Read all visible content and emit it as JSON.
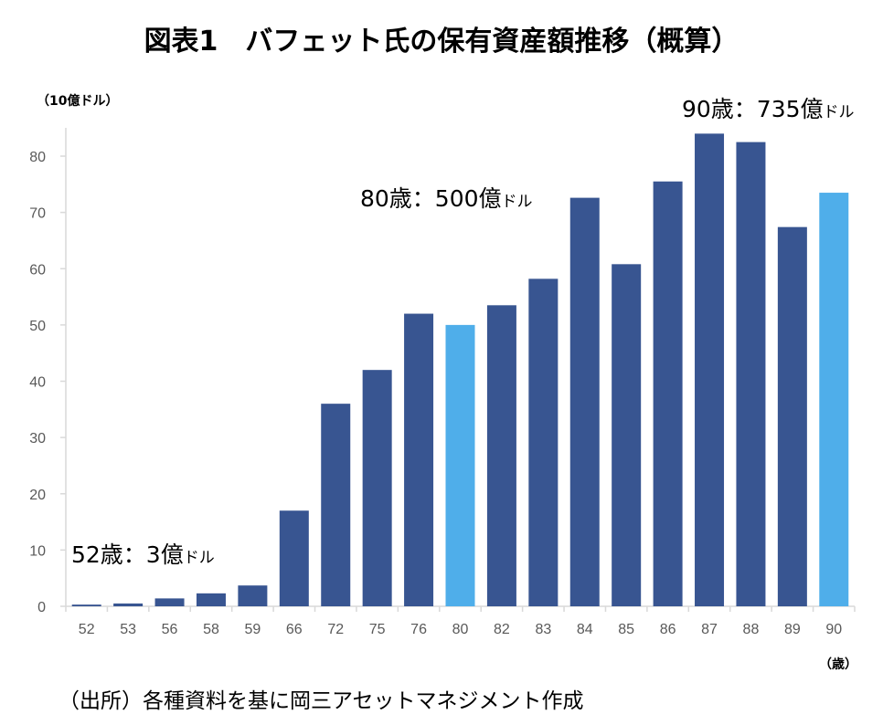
{
  "title": "図表1　バフェット氏の保有資産額推移（概算）",
  "source": "（出所）各種資料を基に岡三アセットマネジメント作成",
  "chart_data": {
    "type": "bar",
    "title": "図表1　バフェット氏の保有資産額推移（概算）",
    "ylabel": "（10億ドル）",
    "xlabel": "（歳）",
    "ylim": [
      0,
      85
    ],
    "yticks": [
      "0",
      "10",
      "20",
      "30",
      "40",
      "50",
      "60",
      "70",
      "80"
    ],
    "grid": false,
    "categories": [
      "52",
      "53",
      "56",
      "58",
      "59",
      "66",
      "72",
      "75",
      "76",
      "80",
      "82",
      "83",
      "84",
      "85",
      "86",
      "87",
      "88",
      "89",
      "90"
    ],
    "values": [
      0.3,
      0.5,
      1.4,
      2.3,
      3.7,
      17,
      36,
      42,
      52,
      50,
      53.5,
      58.2,
      72.6,
      60.8,
      75.5,
      84,
      82.5,
      67.4,
      73.5
    ],
    "highlighted": [
      "80",
      "90"
    ],
    "colors": {
      "bar": "#385591",
      "highlight": "#4FAEEA",
      "axis": "#D9D9D9"
    },
    "annotations": [
      {
        "main": "52歳：3億",
        "unit": "ドル"
      },
      {
        "main": "80歳：500億",
        "unit": "ドル"
      },
      {
        "main": "90歳：735億",
        "unit": "ドル"
      }
    ]
  }
}
